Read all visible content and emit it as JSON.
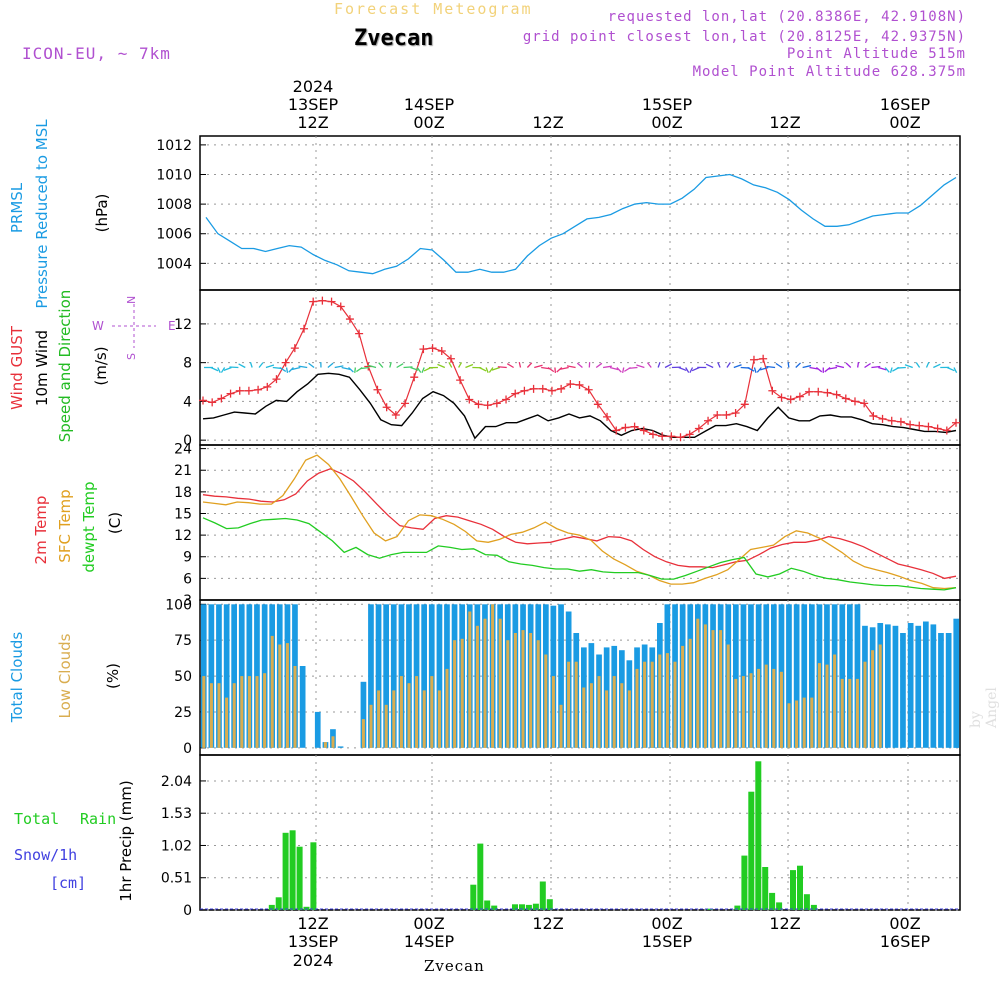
{
  "header": {
    "title": "Forecast Meteogram",
    "location": "Zvecan",
    "model": "ICON-EU, ~ 7km",
    "requested": "requested lon,lat (20.8386E, 42.9108N)",
    "grid_point": "grid point closest lon,lat (20.8125E, 42.9375N)",
    "point_altitude": "Point Altitude 515m",
    "model_altitude": "Model Point Altitude 628.375m",
    "signature": "by Angel",
    "footer_location": "Zvecan"
  },
  "colors": {
    "pressure": "#1a9be3",
    "gust": "#e8303a",
    "wind": "#000000",
    "green": "#22bb22",
    "temp": "#e8303a",
    "sfc": "#e0a020",
    "dewpt": "#22cc22",
    "total_clouds": "#1a9be3",
    "low_clouds": "#d9ad50",
    "rain": "#22cc22",
    "snow": "#4040e0",
    "purple": "#b050d0"
  },
  "chart_data": [
    {
      "type": "line",
      "id": "pressure",
      "ylabel": [
        "PRMSL",
        "Pressure Reduced to MSL"
      ],
      "unit": "(hPa)",
      "ylim": [
        1002.2,
        1012.6
      ],
      "yticks": [
        1004,
        1006,
        1008,
        1010,
        1012
      ],
      "series": [
        {
          "name": "PRMSL",
          "color": "#1a9be3",
          "x": [
            0,
            1,
            2,
            3,
            4,
            5,
            6,
            7,
            8,
            9,
            10,
            11,
            12,
            13,
            14,
            15,
            16,
            17,
            18,
            19,
            20,
            21,
            22,
            23,
            24,
            25,
            26,
            27,
            28,
            29,
            30,
            31,
            32,
            33,
            34,
            35,
            36,
            37,
            38,
            39,
            40,
            41,
            42,
            43,
            44,
            45,
            46,
            47,
            48,
            49,
            50,
            51,
            52,
            53,
            54,
            55,
            56,
            57,
            58,
            59,
            60,
            61,
            62,
            63
          ],
          "values": [
            1007.1,
            1006.0,
            1005.5,
            1005.0,
            1005.0,
            1004.8,
            1005.0,
            1005.2,
            1005.1,
            1004.6,
            1004.2,
            1003.9,
            1003.5,
            1003.4,
            1003.3,
            1003.6,
            1003.8,
            1004.3,
            1005.0,
            1004.9,
            1004.2,
            1003.4,
            1003.4,
            1003.6,
            1003.4,
            1003.4,
            1003.6,
            1004.5,
            1005.2,
            1005.7,
            1006.0,
            1006.5,
            1007.0,
            1007.1,
            1007.3,
            1007.7,
            1008.0,
            1008.1,
            1008.0,
            1008.0,
            1008.4,
            1009.0,
            1009.8,
            1009.9,
            1010.0,
            1009.7,
            1009.3,
            1009.1,
            1008.8,
            1008.3,
            1007.6,
            1007.0,
            1006.5,
            1006.5,
            1006.6,
            1006.9,
            1007.2,
            1007.3,
            1007.4,
            1007.4,
            1007.9,
            1008.6,
            1009.3,
            1009.8
          ]
        }
      ]
    },
    {
      "type": "line",
      "id": "wind",
      "ylabel": [
        "Wind GUST",
        "10m Wind",
        "Speed and Direction"
      ],
      "unit": "(m/s)",
      "compass": {
        "north": "N",
        "south": "S",
        "west": "W",
        "east": "E"
      },
      "ylim": [
        -0.5,
        15.5
      ],
      "yticks": [
        0,
        4,
        8,
        12
      ],
      "series": [
        {
          "name": "Wind GUST",
          "color": "#e8303a",
          "marker": "+",
          "values": [
            4.1,
            3.9,
            4.3,
            4.8,
            5.1,
            5.1,
            5.2,
            5.5,
            6.3,
            8.0,
            9.5,
            11.5,
            14.3,
            14.4,
            14.3,
            13.8,
            12.5,
            11.0,
            7.6,
            5.2,
            3.4,
            2.6,
            3.8,
            6.5,
            9.4,
            9.5,
            9.2,
            8.4,
            6.2,
            4.2,
            3.7,
            3.6,
            3.8,
            4.2,
            4.8,
            5.1,
            5.3,
            5.3,
            5.1,
            5.3,
            5.8,
            5.7,
            5.2,
            3.7,
            2.4,
            1.0,
            1.3,
            1.4,
            1.0,
            0.6,
            0.4,
            0.4,
            0.3,
            0.6,
            1.2,
            2.0,
            2.6,
            2.6,
            2.8,
            3.7,
            8.3,
            8.4,
            5.1,
            4.4,
            4.2,
            4.5,
            5.0,
            5.0,
            4.9,
            4.7,
            4.3,
            4.0,
            3.8,
            2.5,
            2.2,
            2.0,
            1.9,
            1.6,
            1.5,
            1.4,
            1.2,
            1.0,
            1.8
          ]
        },
        {
          "name": "10m Wind",
          "color": "#000000",
          "values": [
            2.2,
            2.3,
            2.6,
            2.9,
            2.8,
            2.7,
            3.5,
            4.1,
            4.0,
            5.0,
            5.8,
            6.8,
            6.9,
            6.8,
            6.5,
            5.2,
            3.8,
            2.1,
            1.6,
            1.5,
            2.8,
            4.3,
            5.0,
            4.6,
            3.8,
            2.5,
            0.2,
            1.4,
            1.4,
            1.8,
            1.8,
            2.2,
            2.6,
            2.0,
            2.3,
            2.7,
            2.3,
            2.5,
            2.0,
            1.0,
            0.5,
            1.0,
            1.2,
            1.0,
            0.5,
            0.3,
            0.3,
            0.3,
            0.9,
            1.5,
            1.5,
            1.7,
            1.4,
            1.0,
            2.3,
            3.4,
            2.3,
            2.0,
            2.0,
            2.5,
            2.6,
            2.4,
            2.4,
            2.1,
            1.7,
            1.6,
            1.4,
            1.3,
            1.1,
            0.9,
            0.9,
            0.8,
            1.0
          ]
        }
      ]
    },
    {
      "type": "line",
      "id": "temperature",
      "ylabel": [
        "2m Temp",
        "SFC Temp",
        "dewpt Temp"
      ],
      "unit": "(C)",
      "ylim": [
        3,
        24.5
      ],
      "yticks": [
        3,
        6,
        9,
        12,
        15,
        18,
        21,
        24
      ],
      "series": [
        {
          "name": "2m Temp",
          "color": "#e8303a",
          "values": [
            17.6,
            17.4,
            17.3,
            17.1,
            17.0,
            16.7,
            16.6,
            16.9,
            17.7,
            19.5,
            20.6,
            21.2,
            20.5,
            19.5,
            18.0,
            16.3,
            14.7,
            13.3,
            13.0,
            12.8,
            14.3,
            14.7,
            14.5,
            14.0,
            13.5,
            12.8,
            11.8,
            11.0,
            10.8,
            10.9,
            11.0,
            11.4,
            11.8,
            11.5,
            11.2,
            11.8,
            11.7,
            11.2,
            10.0,
            9.0,
            8.3,
            7.8,
            7.6,
            7.6,
            7.5,
            7.9,
            8.3,
            8.5,
            9.3,
            10.2,
            10.7,
            11.0,
            11.0,
            11.3,
            11.8,
            11.5,
            11.0,
            10.4,
            9.6,
            8.8,
            8.0,
            7.6,
            7.2,
            6.7,
            6.0,
            6.3
          ]
        },
        {
          "name": "SFC Temp",
          "color": "#e0a020",
          "values": [
            16.6,
            16.4,
            16.2,
            16.6,
            16.5,
            16.3,
            16.3,
            17.5,
            19.8,
            22.4,
            23.1,
            21.8,
            19.8,
            17.3,
            14.7,
            12.3,
            11.2,
            11.8,
            14.0,
            14.8,
            14.7,
            14.2,
            13.5,
            12.5,
            11.2,
            11.0,
            11.4,
            12.1,
            12.4,
            13.0,
            13.8,
            12.9,
            12.3,
            12.0,
            11.3,
            9.8,
            8.7,
            7.9,
            7.0,
            6.5,
            5.7,
            5.2,
            5.2,
            5.4,
            6.0,
            6.5,
            7.2,
            8.6,
            10.0,
            10.3,
            10.6,
            11.8,
            12.6,
            12.3,
            11.6,
            10.6,
            9.6,
            8.4,
            7.6,
            7.2,
            6.8,
            6.3,
            5.7,
            5.3,
            4.7,
            4.6,
            4.7
          ]
        },
        {
          "name": "dewpt Temp",
          "color": "#22cc22",
          "values": [
            14.4,
            13.7,
            12.9,
            13.0,
            13.6,
            14.1,
            14.2,
            14.3,
            14.1,
            13.6,
            12.4,
            11.2,
            9.6,
            10.3,
            9.3,
            8.8,
            9.3,
            9.6,
            9.6,
            9.6,
            10.5,
            10.3,
            10.0,
            10.1,
            9.3,
            9.2,
            8.3,
            8.0,
            7.8,
            7.5,
            7.3,
            7.3,
            7.0,
            7.2,
            6.9,
            6.8,
            6.8,
            6.8,
            6.4,
            5.9,
            5.9,
            6.4,
            7.0,
            7.6,
            8.2,
            8.6,
            8.9,
            6.6,
            6.2,
            6.6,
            7.4,
            7.0,
            6.4,
            6.0,
            5.8,
            5.5,
            5.3,
            5.1,
            5.0,
            5.0,
            4.8,
            4.6,
            4.5,
            4.4,
            4.7
          ]
        }
      ]
    },
    {
      "type": "bar",
      "id": "clouds",
      "ylabel": [
        "Total Clouds",
        "Low Clouds"
      ],
      "unit": "(%)",
      "ylim": [
        -5,
        103
      ],
      "yticks": [
        0,
        25,
        50,
        75,
        100
      ],
      "series": [
        {
          "name": "Total Clouds",
          "color": "#1a9be3",
          "values": [
            100,
            100,
            100,
            100,
            100,
            100,
            100,
            100,
            100,
            100,
            100,
            100,
            100,
            57,
            0,
            25,
            4,
            13,
            1,
            0,
            0,
            46,
            100,
            100,
            100,
            100,
            100,
            100,
            100,
            100,
            100,
            100,
            100,
            100,
            100,
            100,
            100,
            100,
            100,
            100,
            100,
            100,
            100,
            100,
            100,
            100,
            99,
            100,
            95,
            80,
            70,
            73,
            65,
            70,
            71,
            68,
            61,
            70,
            72,
            70,
            87,
            100,
            100,
            100,
            100,
            100,
            100,
            100,
            100,
            100,
            100,
            100,
            100,
            100,
            100,
            100,
            100,
            100,
            100,
            100,
            100,
            100,
            100,
            100,
            100,
            100,
            100,
            85,
            84,
            87,
            86,
            85,
            80,
            87,
            85,
            88,
            86,
            80,
            80,
            90
          ]
        },
        {
          "name": "Low Clouds",
          "color": "#d9ad50",
          "values": [
            50,
            45,
            45,
            35,
            45,
            50,
            50,
            50,
            52,
            78,
            72,
            73,
            57,
            0,
            0,
            0,
            4,
            8,
            0,
            0,
            0,
            20,
            30,
            40,
            30,
            40,
            50,
            45,
            50,
            40,
            50,
            40,
            55,
            75,
            76,
            95,
            85,
            90,
            100,
            90,
            75,
            80,
            82,
            80,
            75,
            65,
            50,
            30,
            60,
            60,
            42,
            45,
            50,
            40,
            50,
            45,
            40,
            55,
            60,
            60,
            65,
            66,
            60,
            71,
            76,
            90,
            86,
            82,
            82,
            72,
            48,
            50,
            52,
            55,
            58,
            55,
            53,
            31,
            33,
            35,
            35,
            59,
            58,
            65,
            48,
            48,
            48,
            60,
            68,
            72
          ]
        }
      ]
    },
    {
      "type": "bar",
      "id": "precip",
      "ylabel": "1hr Precip (mm)",
      "side_labels": {
        "total": "Total",
        "rain": "Rain",
        "snow": "Snow/1h",
        "unit": "[cm]"
      },
      "ylim": [
        0,
        2.45
      ],
      "yticks": [
        0,
        0.51,
        1.02,
        1.53,
        2.04
      ],
      "ytick_labels": [
        "0",
        "0.51",
        "1.02",
        "1.53",
        "2.04"
      ],
      "series": [
        {
          "name": "Total Rain",
          "color": "#22cc22",
          "x": [
            5,
            6,
            7,
            8,
            9,
            10,
            11,
            12,
            34,
            35,
            36,
            37,
            40,
            41,
            42,
            43,
            44,
            45,
            46,
            68,
            72,
            73,
            74,
            75,
            76,
            77,
            78,
            79,
            80,
            81,
            82,
            83
          ],
          "values": [
            0.08,
            0.2,
            1.22,
            1.26,
            1.0,
            0.05,
            1.07,
            0.0,
            0.4,
            1.05,
            0.15,
            0.07,
            0.09,
            0.09,
            0.08,
            0.1,
            0.45,
            0.17,
            0.0,
            0.02,
            0.07,
            0.86,
            1.87,
            2.35,
            0.68,
            0.27,
            0.12,
            0.0,
            0.63,
            0.7,
            0.25,
            0.08
          ]
        }
      ]
    }
  ],
  "time_axis": {
    "top_labels": [
      {
        "line1": "2024",
        "line2": "13SEP",
        "line3": "12Z"
      },
      {
        "line1": "",
        "line2": "14SEP",
        "line3": "00Z"
      },
      {
        "line1": "",
        "line2": "",
        "line3": "12Z"
      },
      {
        "line1": "",
        "line2": "15SEP",
        "line3": "00Z"
      },
      {
        "line1": "",
        "line2": "",
        "line3": "12Z"
      },
      {
        "line1": "",
        "line2": "16SEP",
        "line3": "00Z"
      }
    ],
    "bottom_labels": [
      {
        "line1": "12Z",
        "line2": "13SEP",
        "line3": "2024"
      },
      {
        "line1": "00Z",
        "line2": "14SEP",
        "line3": ""
      },
      {
        "line1": "12Z",
        "line2": "",
        "line3": ""
      },
      {
        "line1": "00Z",
        "line2": "15SEP",
        "line3": ""
      },
      {
        "line1": "12Z",
        "line2": "",
        "line3": ""
      },
      {
        "line1": "00Z",
        "line2": "16SEP",
        "line3": ""
      }
    ]
  }
}
